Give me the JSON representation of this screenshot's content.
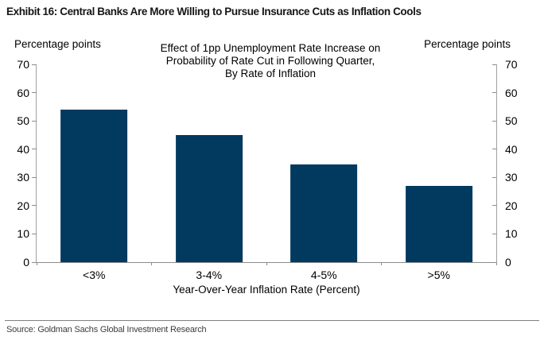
{
  "header": {
    "title": "Exhibit 16: Central Banks Are More Willing to Pursue Insurance Cuts as Inflation Cools"
  },
  "chart_data": {
    "type": "bar",
    "title": "Effect of 1pp Unemployment Rate Increase on\nProbability of Rate Cut in Following Quarter,\nBy Rate of Inflation",
    "categories": [
      "<3%",
      "3-4%",
      "4-5%",
      ">5%"
    ],
    "values": [
      54,
      45,
      34.5,
      27
    ],
    "xlabel": "Year-Over-Year Inflation Rate (Percent)",
    "ylabel_left": "Percentage points",
    "ylabel_right": "Percentage points",
    "ylim": [
      0,
      70
    ],
    "yticks": [
      0,
      10,
      20,
      30,
      40,
      50,
      60,
      70
    ],
    "grid": false,
    "legend": "none",
    "bar_color": "#02395f",
    "axis_color": "#8c8c8c"
  },
  "footer": {
    "source": "Source: Goldman Sachs Global Investment Research"
  }
}
